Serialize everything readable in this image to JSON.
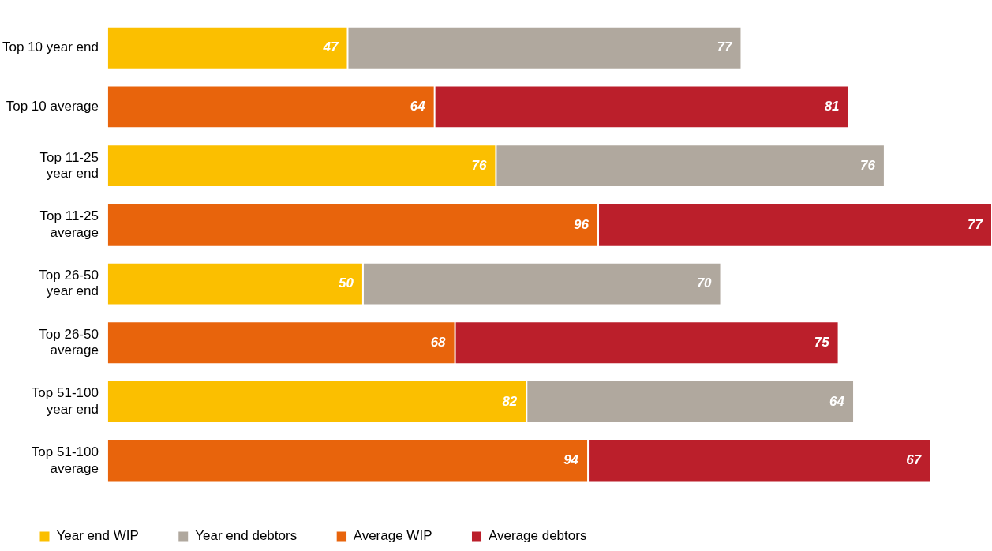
{
  "chart_data": {
    "type": "bar",
    "orientation": "horizontal",
    "stacked": true,
    "data_labels": true,
    "legend": "bottom left",
    "categories": [
      "Top 10 year end",
      "Top 10 average",
      "Top 11-25 year end",
      "Top 11-25 average",
      "Top 26-50 year end",
      "Top 26-50 average",
      "Top 51-100 year end",
      "Top 51-100 average"
    ],
    "series": [
      {
        "name": "Year end WIP",
        "color": "#fbbf00",
        "values": [
          47,
          null,
          76,
          null,
          50,
          null,
          82,
          null
        ]
      },
      {
        "name": "Year end debtors",
        "color": "#b0a89e",
        "values": [
          77,
          null,
          76,
          null,
          70,
          null,
          64,
          null
        ]
      },
      {
        "name": "Average WIP",
        "color": "#e8640c",
        "values": [
          null,
          64,
          null,
          96,
          null,
          68,
          null,
          94
        ]
      },
      {
        "name": "Average debtors",
        "color": "#bb1f2b",
        "values": [
          null,
          81,
          null,
          77,
          null,
          75,
          null,
          67
        ]
      }
    ]
  }
}
